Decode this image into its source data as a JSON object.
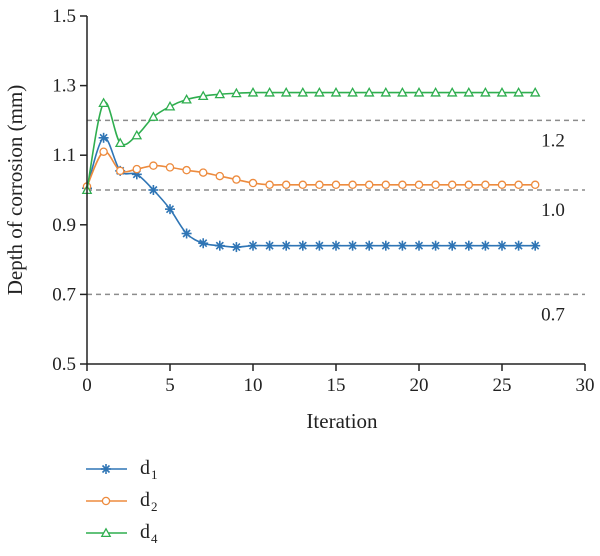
{
  "chart_data": {
    "type": "line",
    "title": "",
    "xlabel": "Iteration",
    "ylabel": "Depth of corrosion (mm)",
    "xlim": [
      0,
      30
    ],
    "ylim": [
      0.5,
      1.5
    ],
    "xticks": [
      "0",
      "5",
      "10",
      "15",
      "20",
      "25",
      "30"
    ],
    "yticks": [
      "0.5",
      "0.7",
      "0.9",
      "1.1",
      "1.3",
      "1.5"
    ],
    "grid": false,
    "legend_position": "bottom-left",
    "reference_lines": [
      {
        "y": 1.2,
        "label": "1.2"
      },
      {
        "y": 1.0,
        "label": "1.0"
      },
      {
        "y": 0.7,
        "label": "0.7"
      }
    ],
    "series": [
      {
        "name": "d",
        "subscript": "1",
        "color": "#2f75b5",
        "marker": "asterisk",
        "x": [
          0,
          1,
          2,
          3,
          4,
          5,
          6,
          7,
          8,
          9,
          10,
          11,
          12,
          13,
          14,
          15,
          16,
          17,
          18,
          19,
          20,
          21,
          22,
          23,
          24,
          25,
          26,
          27
        ],
        "y": [
          1.005,
          1.15,
          1.055,
          1.045,
          1.0,
          0.945,
          0.875,
          0.847,
          0.84,
          0.836,
          0.84,
          0.84,
          0.84,
          0.84,
          0.84,
          0.84,
          0.84,
          0.84,
          0.84,
          0.84,
          0.84,
          0.84,
          0.84,
          0.84,
          0.84,
          0.84,
          0.84,
          0.84
        ]
      },
      {
        "name": "d",
        "subscript": "2",
        "color": "#ed8b3e",
        "marker": "circle",
        "x": [
          0,
          1,
          2,
          3,
          4,
          5,
          6,
          7,
          8,
          9,
          10,
          11,
          12,
          13,
          14,
          15,
          16,
          17,
          18,
          19,
          20,
          21,
          22,
          23,
          24,
          25,
          26,
          27
        ],
        "y": [
          1.01,
          1.11,
          1.055,
          1.06,
          1.07,
          1.065,
          1.057,
          1.05,
          1.04,
          1.03,
          1.02,
          1.015,
          1.015,
          1.015,
          1.015,
          1.015,
          1.015,
          1.015,
          1.015,
          1.015,
          1.015,
          1.015,
          1.015,
          1.015,
          1.015,
          1.015,
          1.015,
          1.015
        ]
      },
      {
        "name": "d",
        "subscript": "4",
        "color": "#2fae4f",
        "marker": "triangle",
        "x": [
          0,
          1,
          2,
          3,
          4,
          5,
          6,
          7,
          8,
          9,
          10,
          11,
          12,
          13,
          14,
          15,
          16,
          17,
          18,
          19,
          20,
          21,
          22,
          23,
          24,
          25,
          26,
          27
        ],
        "y": [
          1.0,
          1.25,
          1.135,
          1.157,
          1.21,
          1.24,
          1.26,
          1.27,
          1.275,
          1.278,
          1.28,
          1.28,
          1.28,
          1.28,
          1.28,
          1.28,
          1.28,
          1.28,
          1.28,
          1.28,
          1.28,
          1.28,
          1.28,
          1.28,
          1.28,
          1.28,
          1.28,
          1.28
        ]
      }
    ]
  }
}
